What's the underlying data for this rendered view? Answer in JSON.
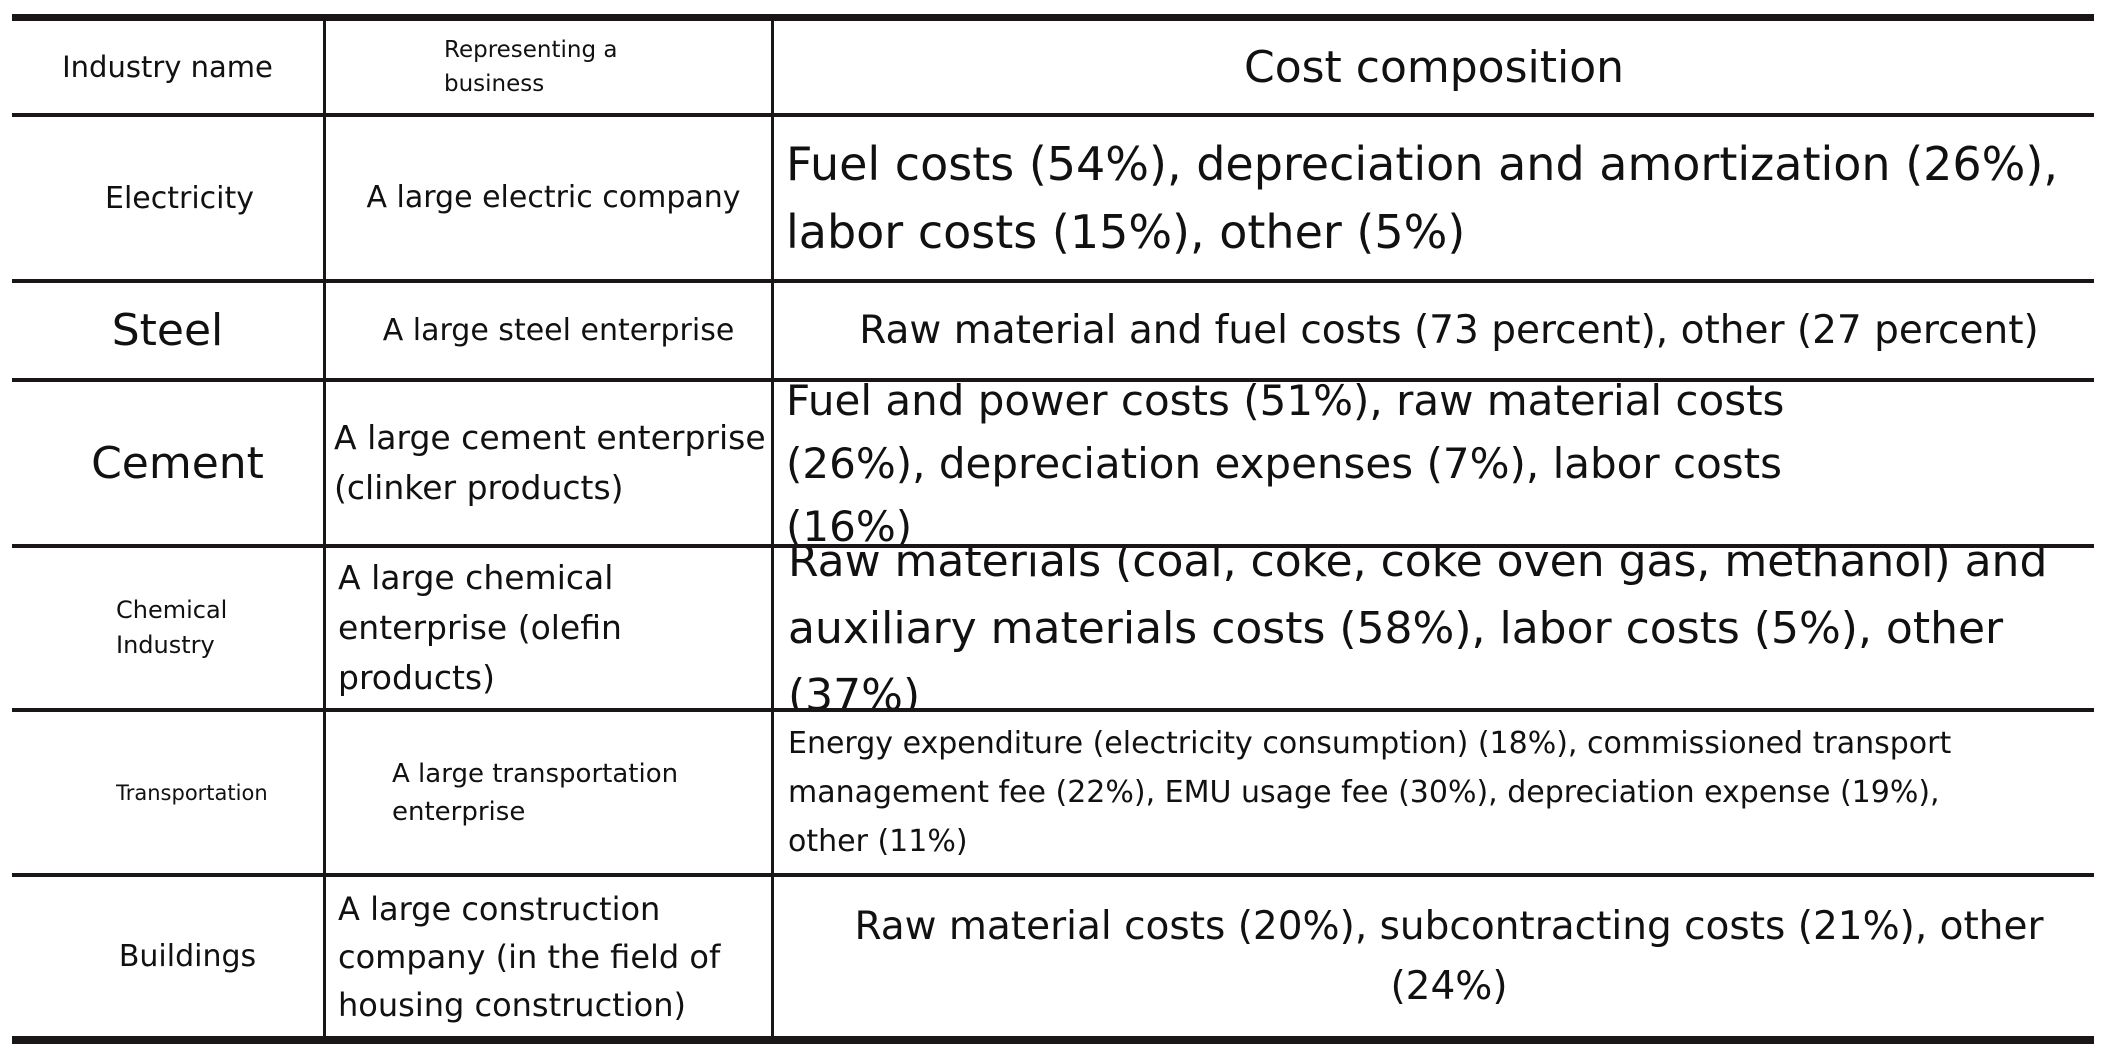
{
  "header": {
    "industry": "Industry name",
    "business": "Representing a business",
    "cost": "Cost composition"
  },
  "rows": [
    {
      "industry": "Electricity",
      "business": "A large electric company",
      "cost": "Fuel costs (54%), depreciation and amortization (26%), labor costs (15%), other (5%)"
    },
    {
      "industry": "Steel",
      "business": "A large steel enterprise",
      "cost": "Raw material and fuel costs (73 percent), other (27 percent)"
    },
    {
      "industry": "Cement",
      "business": "A large cement enterprise (clinker products)",
      "cost": "Fuel and power costs (51%), raw material costs (26%), depreciation expenses (7%), labor costs (16%)"
    },
    {
      "industry": "Chemical Industry",
      "business": "A large chemical enterprise (olefin products)",
      "cost": "Raw materials (coal, coke, coke oven gas, methanol) and auxiliary materials costs (58%), labor costs (5%), other (37%)"
    },
    {
      "industry": "Transportation",
      "business": "A large transportation enterprise",
      "cost": "Energy expenditure (electricity consumption) (18%), commissioned transport management fee (22%), EMU usage fee (30%), depreciation expense (19%), other (11%)"
    },
    {
      "industry": "Buildings",
      "business": "A large construction company (in the field of housing construction)",
      "cost": "Raw material costs (20%), subcontracting costs (21%), other (24%)"
    }
  ]
}
